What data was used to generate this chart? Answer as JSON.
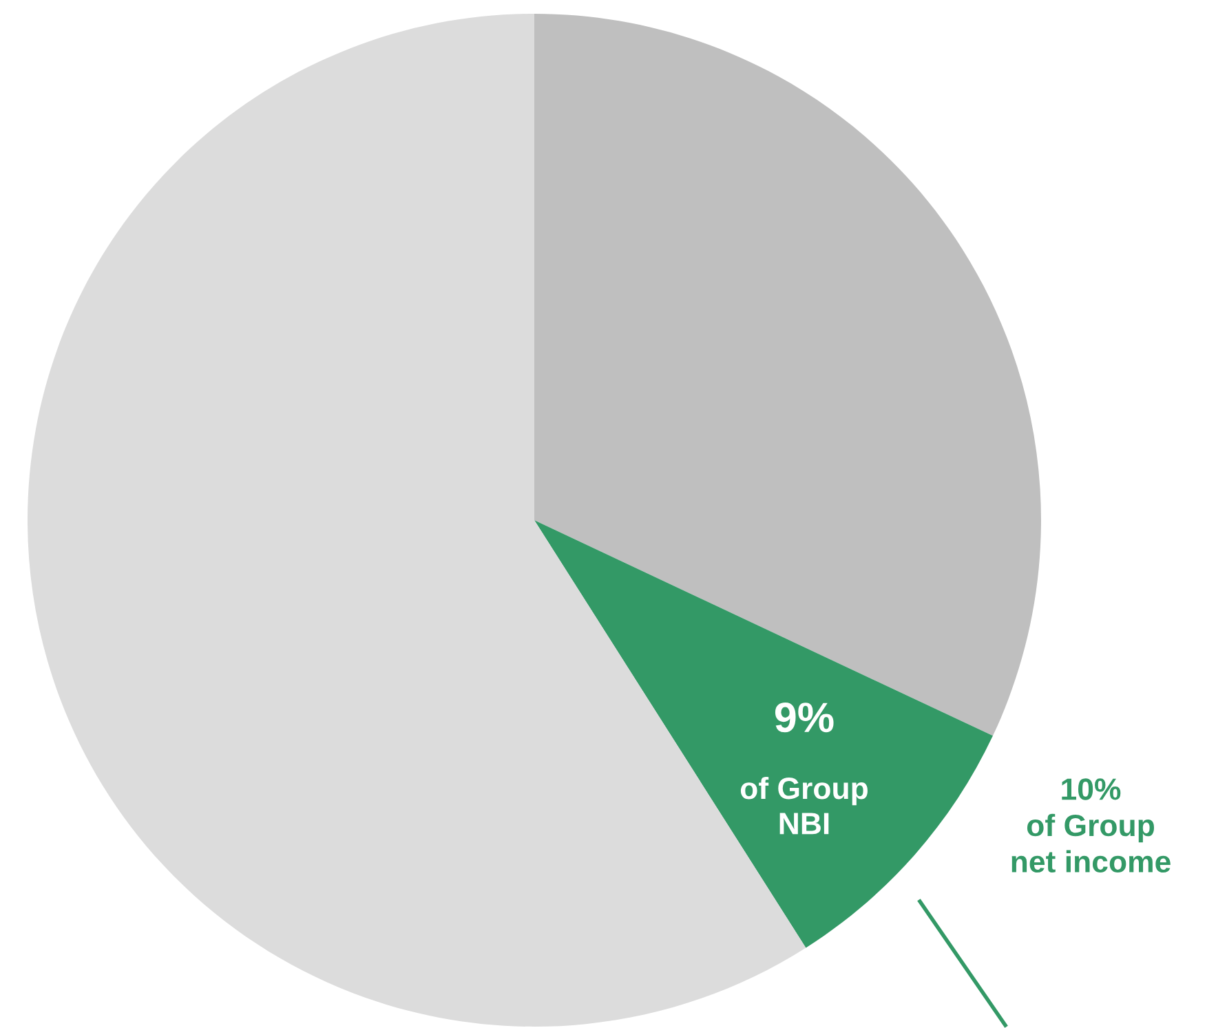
{
  "chart_data": {
    "type": "pie",
    "categories": [
      null,
      null,
      null
    ],
    "values": [
      32,
      9,
      59
    ],
    "colors": [
      "#bfbfbf",
      "#339966",
      "#dcdcdc"
    ],
    "value_labels": [
      null,
      "9%",
      null
    ],
    "annotations": [
      "of Group\nNBI",
      "10%\nof Group\nnet income"
    ],
    "legend": false
  }
}
